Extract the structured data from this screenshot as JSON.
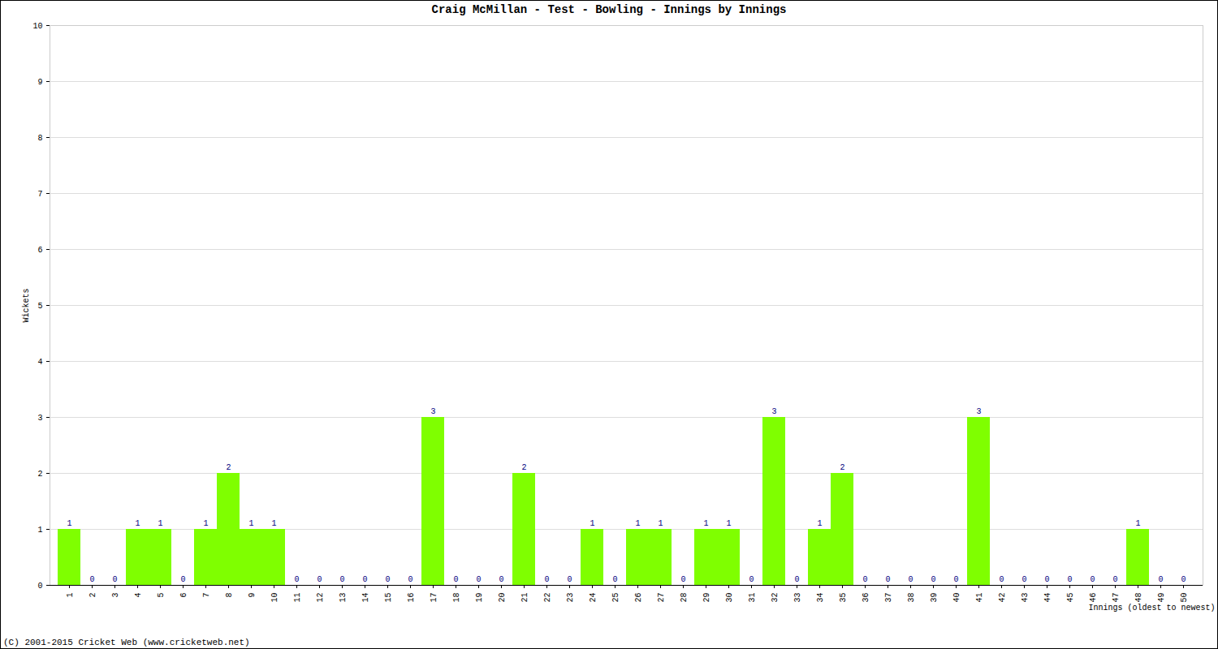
{
  "chart_data": {
    "type": "bar",
    "title": "Craig McMillan - Test - Bowling - Innings by Innings",
    "x_label": "Innings (oldest to newest)",
    "y_label": "Wickets",
    "caption": "(C) 2001-2015 Cricket Web (www.cricketweb.net)",
    "categories": [
      "1",
      "2",
      "3",
      "4",
      "5",
      "6",
      "7",
      "8",
      "9",
      "10",
      "11",
      "12",
      "13",
      "14",
      "15",
      "16",
      "17",
      "18",
      "19",
      "20",
      "21",
      "22",
      "23",
      "24",
      "25",
      "26",
      "27",
      "28",
      "29",
      "30",
      "31",
      "32",
      "33",
      "34",
      "35",
      "36",
      "37",
      "38",
      "39",
      "40",
      "41",
      "42",
      "43",
      "44",
      "45",
      "46",
      "47",
      "48",
      "49",
      "50"
    ],
    "values": [
      1,
      0,
      0,
      1,
      1,
      0,
      1,
      2,
      1,
      1,
      0,
      0,
      0,
      0,
      0,
      0,
      3,
      0,
      0,
      0,
      2,
      0,
      0,
      1,
      0,
      1,
      1,
      0,
      1,
      1,
      0,
      3,
      0,
      1,
      2,
      0,
      0,
      0,
      0,
      0,
      3,
      0,
      0,
      0,
      0,
      0,
      0,
      1,
      0,
      0
    ],
    "color": "#7fff00",
    "ylim": [
      0,
      10
    ],
    "yticks": [
      0,
      1,
      2,
      3,
      4,
      5,
      6,
      7,
      8,
      9,
      10
    ],
    "grid": true,
    "data_labels": true
  }
}
